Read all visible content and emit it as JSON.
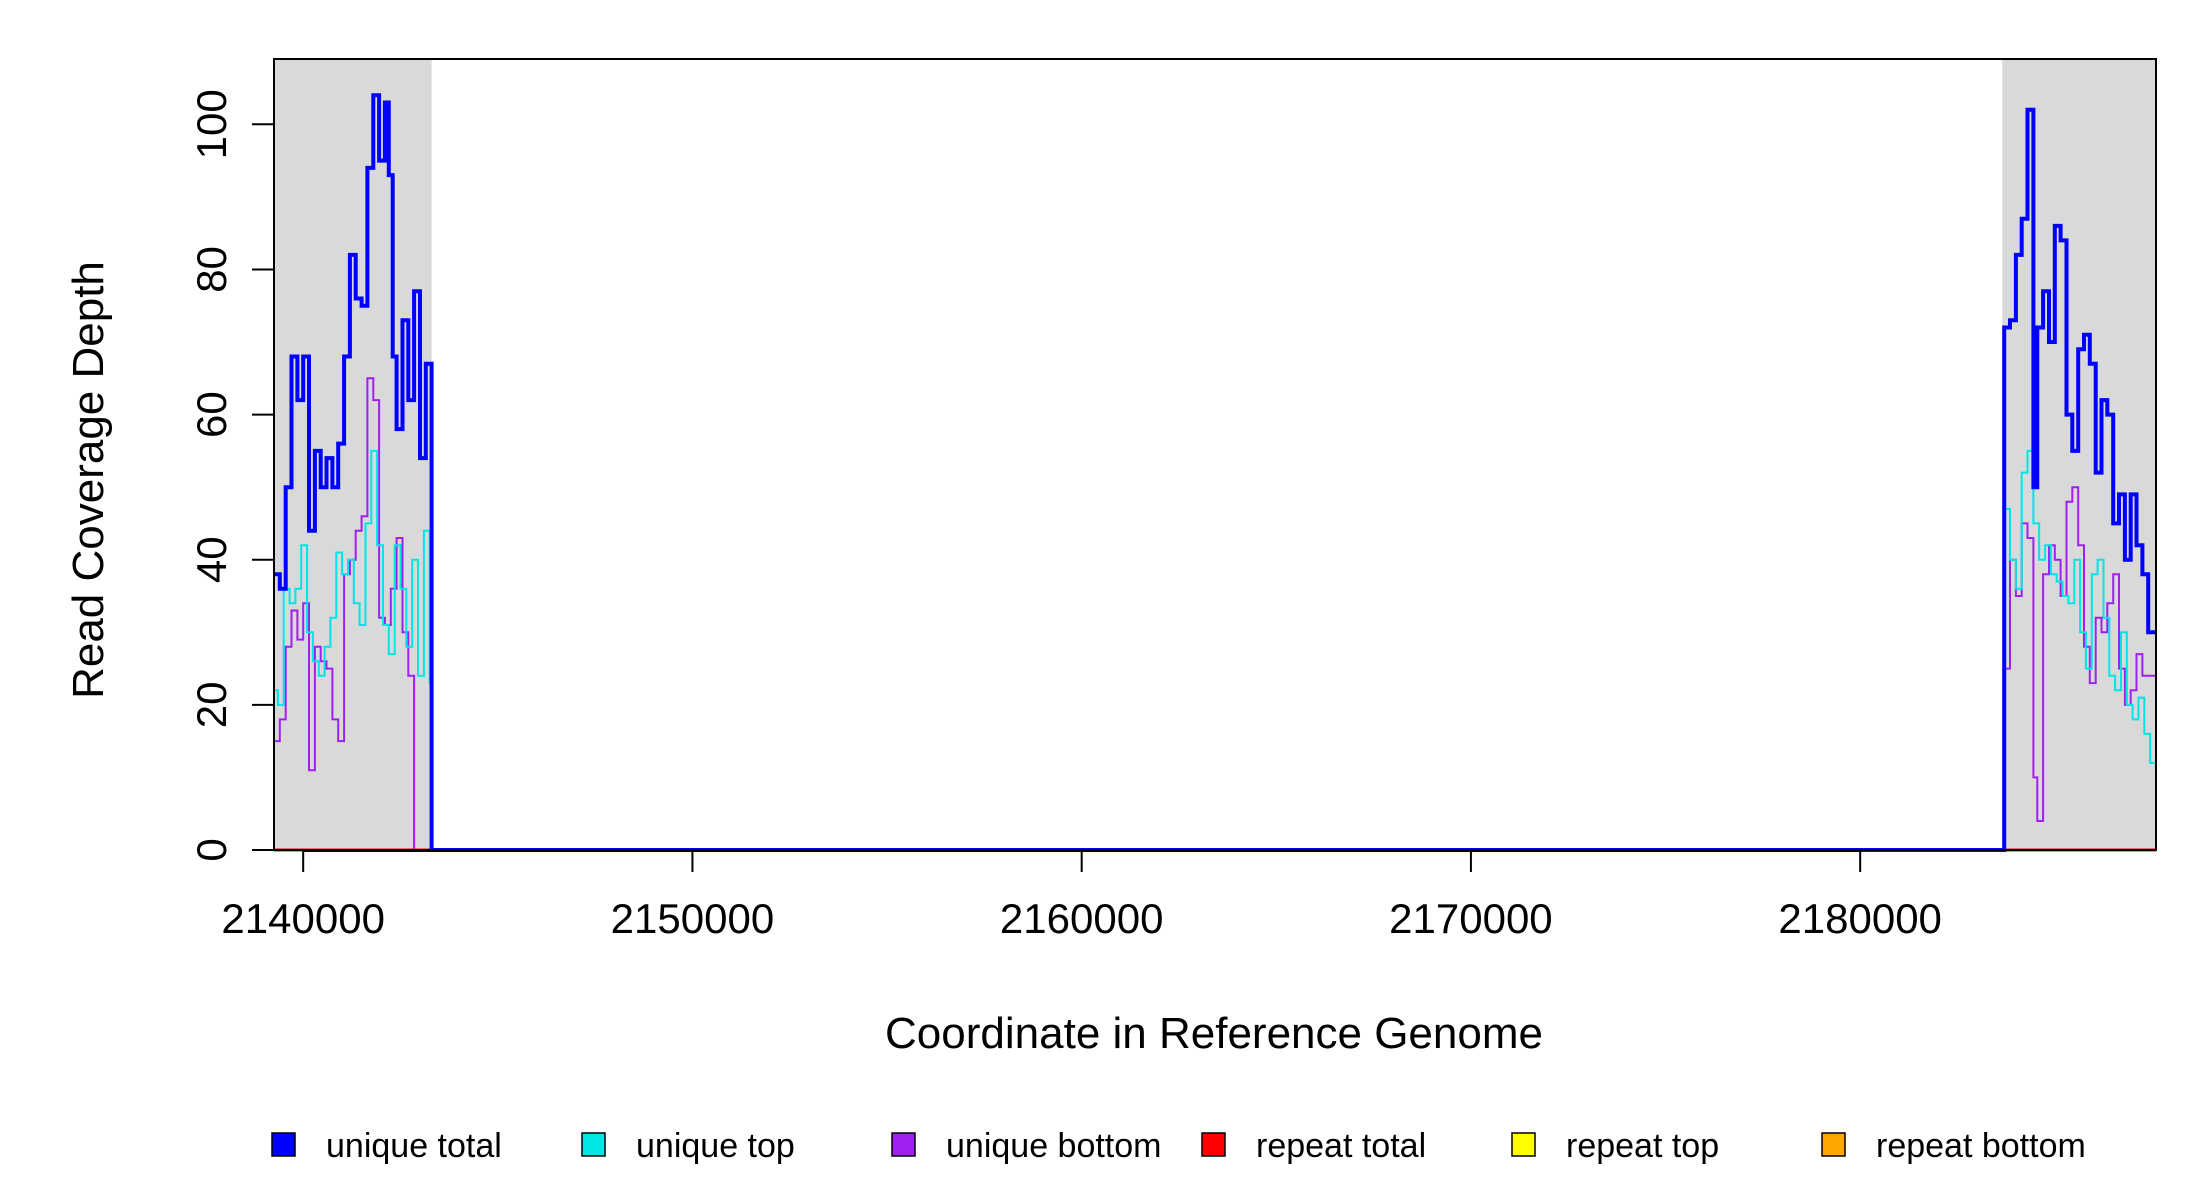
{
  "chart_data": {
    "type": "line",
    "title": "",
    "xlabel": "Coordinate in Reference Genome",
    "ylabel": "Read Coverage Depth",
    "xlim": [
      2139250,
      2187600
    ],
    "ylim": [
      0,
      109
    ],
    "xticks": [
      2140000,
      2150000,
      2160000,
      2170000,
      2180000
    ],
    "xtick_labels": [
      "2140000",
      "2150000",
      "2160000",
      "2170000",
      "2180000"
    ],
    "yticks": [
      0,
      20,
      40,
      60,
      80,
      100
    ],
    "ytick_labels": [
      "0",
      "20",
      "40",
      "60",
      "80",
      "100"
    ],
    "shaded_regions": [
      [
        2139250,
        2143300
      ],
      [
        2183650,
        2187600
      ]
    ],
    "shade_color": "#d9d9d9",
    "grid": false,
    "legend_position": "bottom",
    "series": [
      {
        "name": "unique total",
        "color": "#0000ff",
        "x": [
          2139250,
          2139400,
          2139550,
          2139700,
          2139850,
          2140000,
          2140150,
          2140300,
          2140450,
          2140600,
          2140750,
          2140900,
          2141050,
          2141200,
          2141350,
          2141500,
          2141650,
          2141800,
          2141950,
          2142100,
          2142200,
          2142300,
          2142400,
          2142550,
          2142700,
          2142850,
          2143000,
          2143150,
          2143300,
          2143350,
          2183650,
          2183700,
          2183850,
          2184000,
          2184150,
          2184300,
          2184450,
          2184550,
          2184700,
          2184850,
          2185000,
          2185150,
          2185300,
          2185450,
          2185600,
          2185750,
          2185900,
          2186050,
          2186200,
          2186350,
          2186500,
          2186650,
          2186800,
          2186950,
          2187100,
          2187250,
          2187400,
          2187550,
          2187600
        ],
        "y": [
          38,
          36,
          50,
          68,
          62,
          68,
          44,
          55,
          50,
          54,
          50,
          56,
          68,
          82,
          76,
          75,
          94,
          104,
          95,
          103,
          93,
          68,
          58,
          73,
          62,
          77,
          54,
          67,
          0,
          0,
          0,
          72,
          73,
          82,
          87,
          102,
          50,
          72,
          77,
          70,
          86,
          84,
          60,
          55,
          69,
          71,
          67,
          52,
          62,
          60,
          45,
          49,
          40,
          49,
          42,
          38,
          30,
          30,
          30
        ]
      },
      {
        "name": "unique top",
        "color": "#00e5e5",
        "x": [
          2139250,
          2139350,
          2139500,
          2139650,
          2139800,
          2139950,
          2140100,
          2140250,
          2140400,
          2140550,
          2140700,
          2140850,
          2141000,
          2141150,
          2141300,
          2141450,
          2141600,
          2141750,
          2141900,
          2142050,
          2142200,
          2142350,
          2142500,
          2142650,
          2142800,
          2142950,
          2143100,
          2143250,
          2143300,
          2143350,
          2183650,
          2183700,
          2183850,
          2184000,
          2184150,
          2184300,
          2184450,
          2184600,
          2184750,
          2184900,
          2185050,
          2185200,
          2185350,
          2185500,
          2185650,
          2185800,
          2185950,
          2186100,
          2186250,
          2186400,
          2186550,
          2186700,
          2186850,
          2187000,
          2187150,
          2187300,
          2187450,
          2187600
        ],
        "y": [
          22,
          20,
          36,
          34,
          36,
          42,
          30,
          26,
          24,
          28,
          32,
          41,
          38,
          40,
          34,
          31,
          45,
          55,
          42,
          31,
          27,
          42,
          36,
          28,
          40,
          24,
          44,
          23,
          0,
          0,
          0,
          47,
          40,
          36,
          52,
          55,
          45,
          40,
          42,
          38,
          37,
          35,
          34,
          40,
          30,
          25,
          38,
          40,
          32,
          24,
          22,
          30,
          20,
          18,
          21,
          16,
          12,
          11
        ]
      },
      {
        "name": "unique bottom",
        "color": "#a020f0",
        "x": [
          2139250,
          2139400,
          2139550,
          2139700,
          2139850,
          2140000,
          2140150,
          2140300,
          2140450,
          2140600,
          2140750,
          2140900,
          2141050,
          2141200,
          2141350,
          2141500,
          2141650,
          2141800,
          2141950,
          2142100,
          2142250,
          2142400,
          2142550,
          2142700,
          2142850,
          2143000,
          2143150,
          2143300,
          2143350,
          2183650,
          2183700,
          2183850,
          2184000,
          2184150,
          2184300,
          2184450,
          2184550,
          2184700,
          2184850,
          2185000,
          2185150,
          2185300,
          2185450,
          2185600,
          2185750,
          2185900,
          2186050,
          2186200,
          2186350,
          2186500,
          2186650,
          2186800,
          2186950,
          2187100,
          2187250,
          2187400,
          2187600
        ],
        "y": [
          15,
          18,
          28,
          33,
          29,
          34,
          11,
          28,
          26,
          25,
          18,
          15,
          38,
          40,
          44,
          46,
          65,
          62,
          32,
          31,
          36,
          43,
          30,
          24,
          0,
          0,
          0,
          0,
          0,
          0,
          25,
          40,
          35,
          45,
          43,
          10,
          4,
          38,
          42,
          40,
          35,
          48,
          50,
          42,
          28,
          23,
          32,
          30,
          34,
          38,
          25,
          20,
          22,
          27,
          24,
          24,
          24
        ]
      },
      {
        "name": "repeat total",
        "color": "#ff0000",
        "x": [
          2139250,
          2143300,
          2183650,
          2187600
        ],
        "y": [
          0,
          0,
          0,
          0
        ]
      },
      {
        "name": "repeat top",
        "color": "#ffff00",
        "x": [
          2139250,
          2143300,
          2183650,
          2187600
        ],
        "y": [
          0,
          0,
          0,
          0
        ]
      },
      {
        "name": "repeat bottom",
        "color": "#ffa500",
        "x": [
          2139250,
          2143300,
          2183650,
          2187600
        ],
        "y": [
          0,
          0,
          0,
          0
        ]
      }
    ]
  }
}
